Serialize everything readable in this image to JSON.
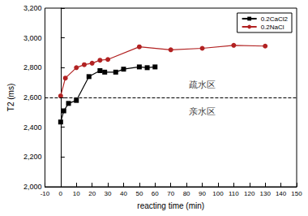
{
  "chart_data": {
    "type": "scatter",
    "x_label": "reacting time (min)",
    "y_label": "T2 (ms)",
    "xlim": [
      -10,
      150
    ],
    "xticks": [
      -10,
      0,
      10,
      20,
      30,
      40,
      50,
      60,
      70,
      80,
      90,
      100,
      110,
      120,
      130,
      140,
      150
    ],
    "ylim": [
      2000,
      3200
    ],
    "yticks": [
      2000,
      2200,
      2400,
      2600,
      2800,
      3000,
      3200
    ],
    "grid": false,
    "legend": "upper right",
    "series": [
      {
        "name": "0.2CaCl2",
        "color": "#000000",
        "marker": "square",
        "line_style": "solid",
        "x": [
          0,
          2,
          5,
          10,
          18,
          25,
          28,
          35,
          40,
          50,
          55,
          60
        ],
        "values": [
          2435,
          2510,
          2560,
          2580,
          2740,
          2780,
          2770,
          2770,
          2790,
          2805,
          2800,
          2805
        ]
      },
      {
        "name": "0.2NaCl",
        "color": "#b22222",
        "marker": "circle",
        "line_style": "solid",
        "x": [
          0,
          3,
          10,
          15,
          20,
          25,
          30,
          50,
          70,
          90,
          110,
          130
        ],
        "values": [
          2610,
          2730,
          2800,
          2820,
          2830,
          2850,
          2855,
          2940,
          2920,
          2930,
          2950,
          2945
        ]
      }
    ],
    "reference_lines": [
      {
        "y": 2600,
        "line_style": "dashed",
        "color": "#000000"
      }
    ],
    "annotations": [
      {
        "text": "疏水区",
        "x": 90,
        "y": 2690
      },
      {
        "text": "亲水区",
        "x": 90,
        "y": 2510
      }
    ]
  }
}
